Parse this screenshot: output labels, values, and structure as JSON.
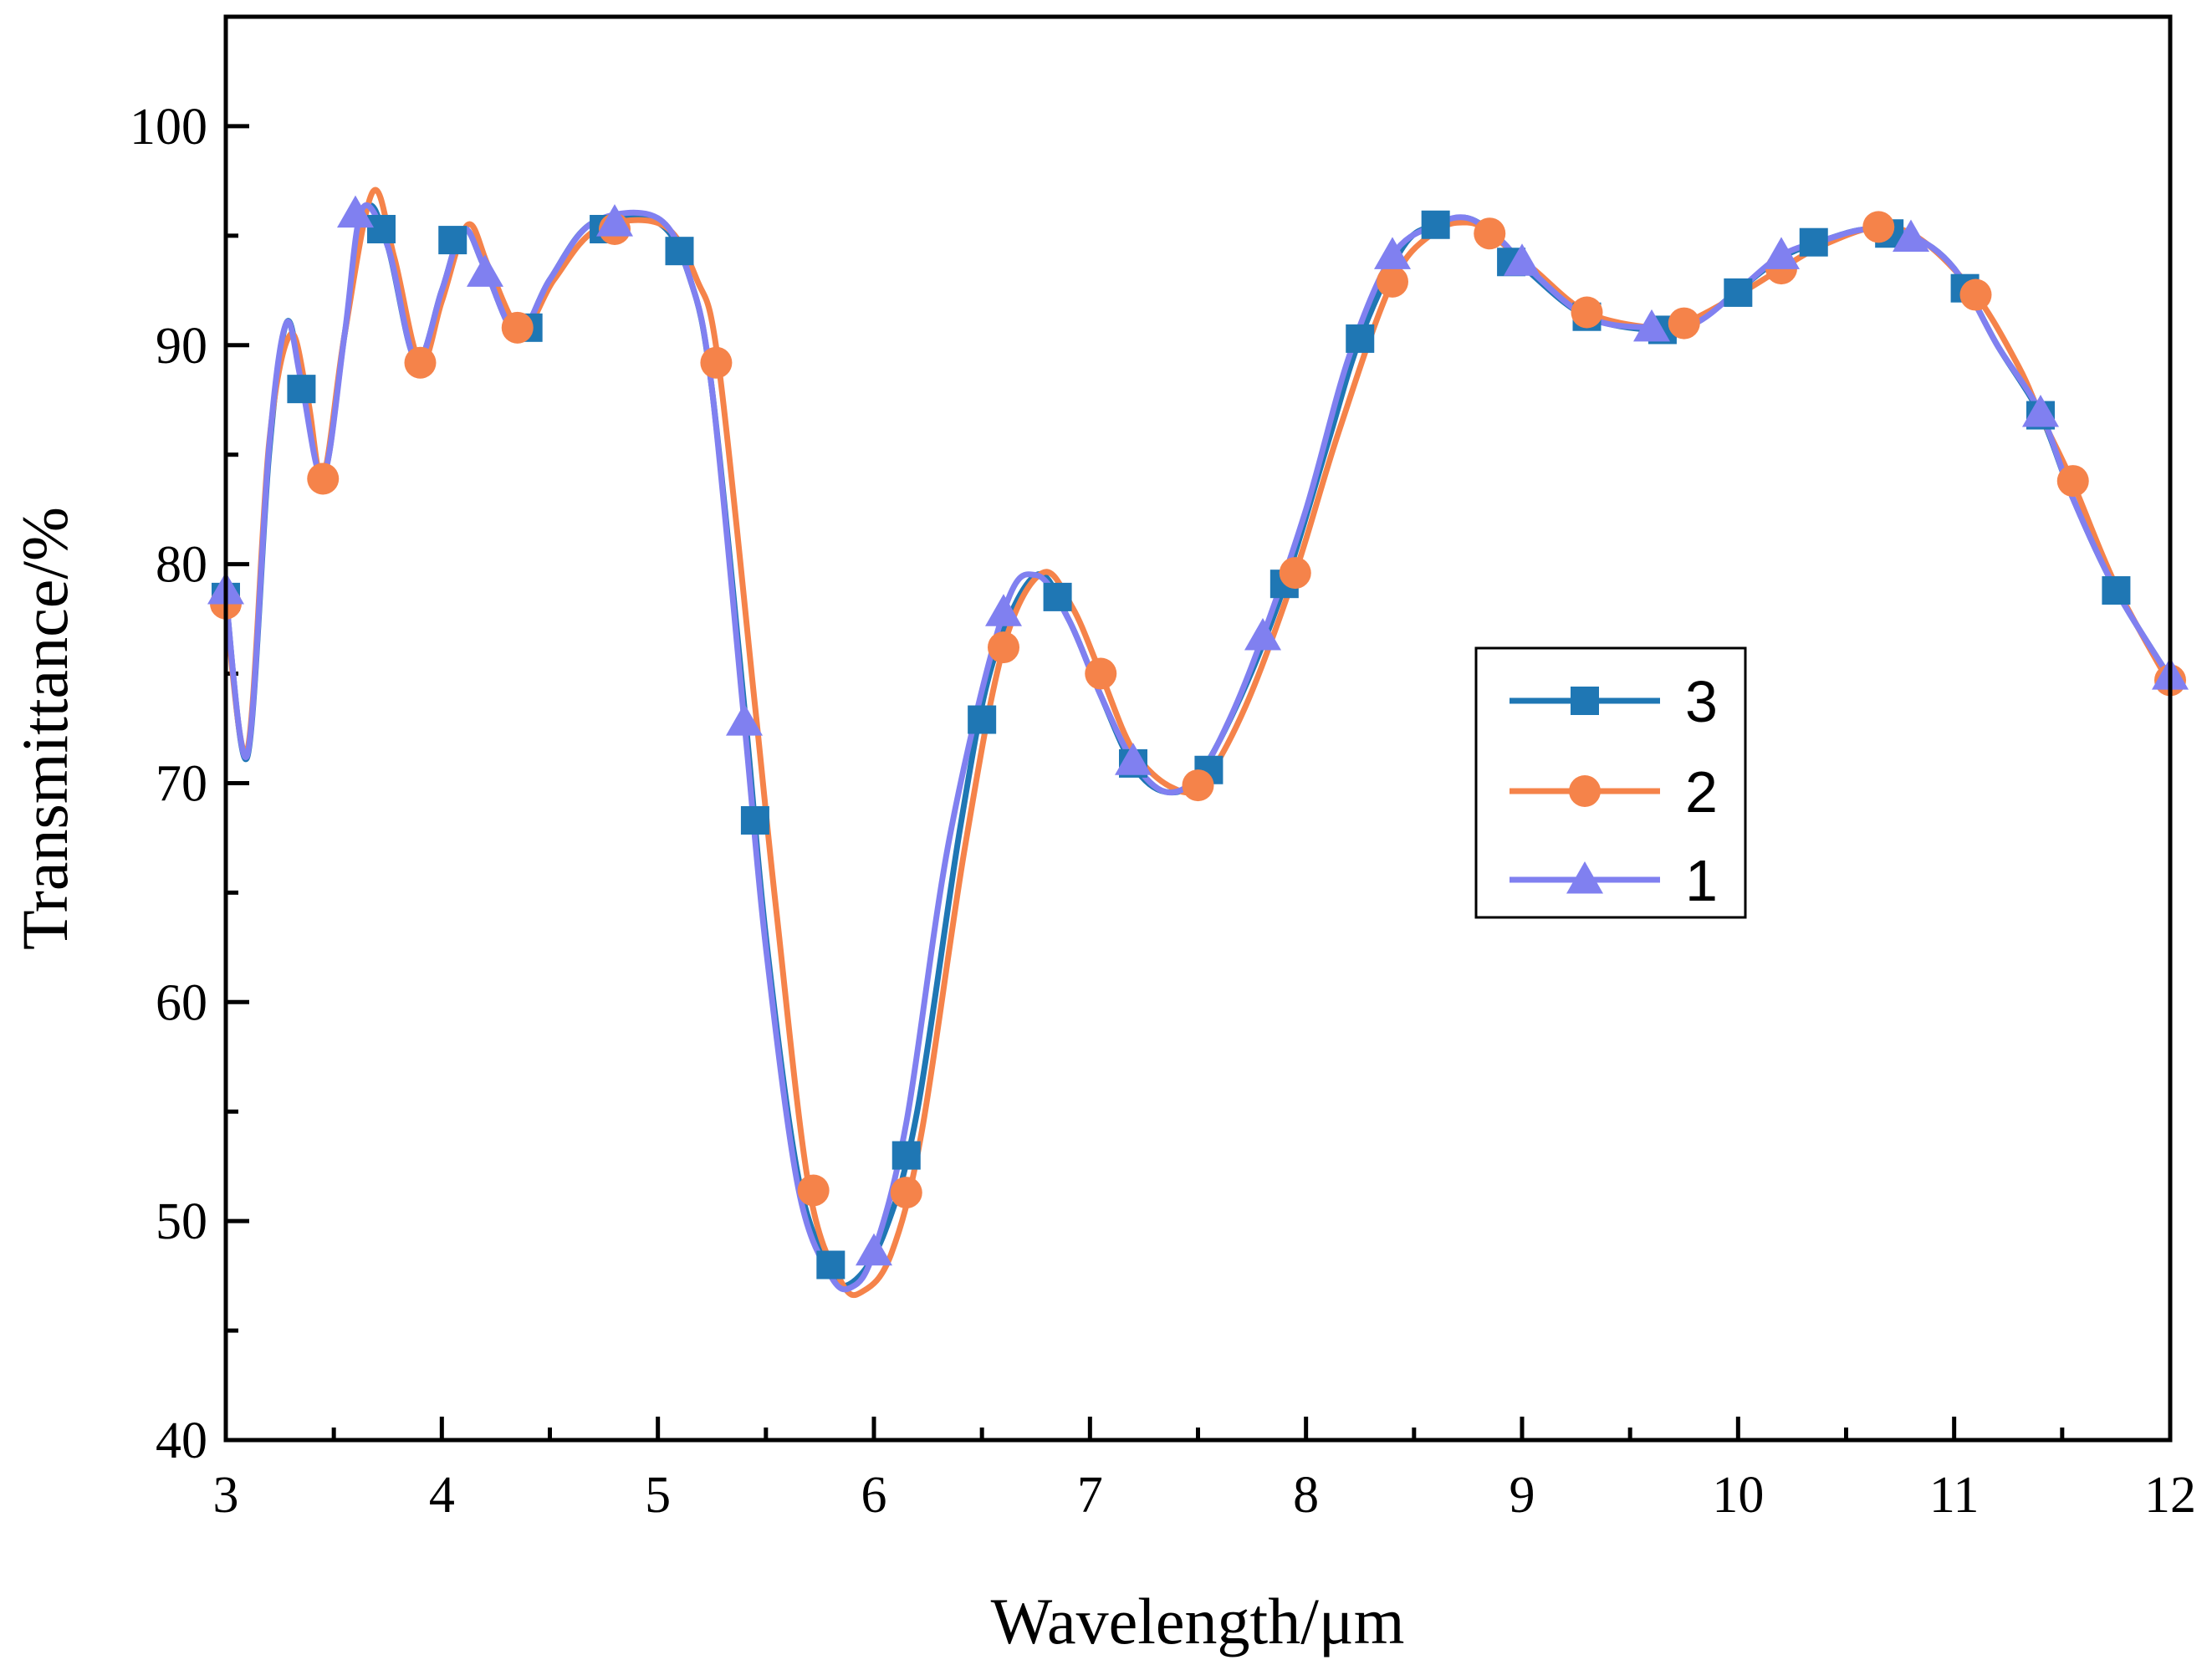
{
  "chart_data": {
    "type": "line",
    "title": "",
    "xlabel": "Wavelength/μm",
    "ylabel": "Transmittance/%",
    "xlim": [
      3,
      12
    ],
    "ylim": [
      40,
      105
    ],
    "x_ticks": [
      3,
      4,
      5,
      6,
      7,
      8,
      9,
      10,
      11,
      12
    ],
    "y_ticks": [
      40,
      50,
      60,
      70,
      80,
      90,
      100
    ],
    "x_tick_labels": [
      "3",
      "4",
      "5",
      "6",
      "7",
      "8",
      "9",
      "10",
      "11",
      "12"
    ],
    "y_tick_labels": [
      "40",
      "50",
      "60",
      "70",
      "80",
      "90",
      "100"
    ],
    "grid": false,
    "legend_position": "center-right",
    "series": [
      {
        "name": "3",
        "color": "#1f77b4",
        "marker": "square",
        "curve": [
          [
            3.0,
            78.5
          ],
          [
            3.1,
            71.2
          ],
          [
            3.2,
            85.0
          ],
          [
            3.28,
            91.0
          ],
          [
            3.35,
            88.5
          ],
          [
            3.45,
            84.0
          ],
          [
            3.55,
            90.5
          ],
          [
            3.65,
            96.2
          ],
          [
            3.75,
            94.5
          ],
          [
            3.88,
            89.3
          ],
          [
            4.0,
            92.5
          ],
          [
            4.1,
            95.3
          ],
          [
            4.2,
            93.5
          ],
          [
            4.35,
            90.5
          ],
          [
            4.5,
            93.0
          ],
          [
            4.7,
            95.6
          ],
          [
            5.0,
            95.6
          ],
          [
            5.15,
            93.0
          ],
          [
            5.25,
            88.0
          ],
          [
            5.4,
            73.5
          ],
          [
            5.5,
            63.0
          ],
          [
            5.65,
            52.0
          ],
          [
            5.8,
            47.8
          ],
          [
            5.9,
            47.2
          ],
          [
            6.05,
            49.5
          ],
          [
            6.2,
            55.0
          ],
          [
            6.4,
            68.0
          ],
          [
            6.55,
            75.5
          ],
          [
            6.75,
            79.5
          ],
          [
            6.9,
            77.5
          ],
          [
            7.05,
            74.0
          ],
          [
            7.2,
            70.8
          ],
          [
            7.35,
            69.6
          ],
          [
            7.5,
            70.3
          ],
          [
            7.7,
            74.0
          ],
          [
            7.9,
            79.0
          ],
          [
            8.1,
            85.5
          ],
          [
            8.25,
            90.3
          ],
          [
            8.45,
            94.5
          ],
          [
            8.6,
            95.5
          ],
          [
            8.75,
            95.8
          ],
          [
            8.9,
            94.8
          ],
          [
            9.05,
            93.2
          ],
          [
            9.3,
            91.3
          ],
          [
            9.6,
            90.7
          ],
          [
            9.8,
            91.0
          ],
          [
            10.0,
            92.5
          ],
          [
            10.2,
            94.0
          ],
          [
            10.4,
            94.8
          ],
          [
            10.6,
            95.3
          ],
          [
            10.8,
            95.0
          ],
          [
            11.0,
            93.5
          ],
          [
            11.2,
            90.0
          ],
          [
            11.4,
            86.8
          ],
          [
            11.55,
            83.0
          ],
          [
            11.75,
            78.8
          ],
          [
            12.0,
            74.8
          ]
        ],
        "markers": [
          [
            3.0,
            78.5
          ],
          [
            3.35,
            88.0
          ],
          [
            3.72,
            95.3
          ],
          [
            4.05,
            94.8
          ],
          [
            4.4,
            90.8
          ],
          [
            4.75,
            95.3
          ],
          [
            5.1,
            94.3
          ],
          [
            5.45,
            68.3
          ],
          [
            5.8,
            48.0
          ],
          [
            6.15,
            53.0
          ],
          [
            6.5,
            72.9
          ],
          [
            6.85,
            78.5
          ],
          [
            7.2,
            70.9
          ],
          [
            7.55,
            70.6
          ],
          [
            7.9,
            79.1
          ],
          [
            8.25,
            90.3
          ],
          [
            8.6,
            95.5
          ],
          [
            8.95,
            93.8
          ],
          [
            9.3,
            91.3
          ],
          [
            9.65,
            90.7
          ],
          [
            10.0,
            92.4
          ],
          [
            10.35,
            94.7
          ],
          [
            10.7,
            95.1
          ],
          [
            11.05,
            92.6
          ],
          [
            11.4,
            86.8
          ],
          [
            11.75,
            78.8
          ]
        ]
      },
      {
        "name": "2",
        "color": "#f5834a",
        "marker": "circle",
        "curve": [
          [
            3.0,
            78.0
          ],
          [
            3.1,
            71.5
          ],
          [
            3.2,
            85.5
          ],
          [
            3.3,
            90.5
          ],
          [
            3.38,
            87.5
          ],
          [
            3.45,
            84.0
          ],
          [
            3.55,
            90.5
          ],
          [
            3.68,
            97.0
          ],
          [
            3.78,
            94.0
          ],
          [
            3.9,
            89.2
          ],
          [
            4.0,
            92.0
          ],
          [
            4.12,
            95.5
          ],
          [
            4.22,
            93.5
          ],
          [
            4.37,
            90.7
          ],
          [
            4.52,
            93.0
          ],
          [
            4.72,
            95.3
          ],
          [
            5.02,
            95.5
          ],
          [
            5.18,
            93.0
          ],
          [
            5.28,
            89.2
          ],
          [
            5.45,
            73.5
          ],
          [
            5.55,
            64.0
          ],
          [
            5.7,
            51.5
          ],
          [
            5.85,
            47.2
          ],
          [
            5.95,
            46.8
          ],
          [
            6.08,
            48.5
          ],
          [
            6.22,
            54.0
          ],
          [
            6.42,
            67.0
          ],
          [
            6.6,
            76.2
          ],
          [
            6.78,
            79.6
          ],
          [
            6.92,
            78.0
          ],
          [
            7.05,
            75.0
          ],
          [
            7.2,
            71.5
          ],
          [
            7.38,
            69.8
          ],
          [
            7.52,
            70.0
          ],
          [
            7.72,
            73.5
          ],
          [
            7.95,
            79.6
          ],
          [
            8.15,
            86.0
          ],
          [
            8.4,
            92.9
          ],
          [
            8.6,
            95.2
          ],
          [
            8.75,
            95.6
          ],
          [
            8.85,
            95.1
          ],
          [
            9.05,
            93.5
          ],
          [
            9.3,
            91.5
          ],
          [
            9.6,
            90.8
          ],
          [
            9.75,
            91.0
          ],
          [
            10.0,
            92.3
          ],
          [
            10.2,
            93.5
          ],
          [
            10.4,
            94.6
          ],
          [
            10.65,
            95.4
          ],
          [
            10.85,
            94.8
          ],
          [
            11.1,
            92.3
          ],
          [
            11.3,
            89.0
          ],
          [
            11.4,
            86.8
          ],
          [
            11.55,
            83.7
          ],
          [
            11.75,
            79.0
          ],
          [
            12.0,
            74.5
          ]
        ],
        "markers": [
          [
            3.0,
            78.2
          ],
          [
            3.45,
            83.9
          ],
          [
            3.9,
            89.2
          ],
          [
            4.35,
            90.8
          ],
          [
            4.8,
            95.3
          ],
          [
            5.27,
            89.2
          ],
          [
            5.72,
            51.4
          ],
          [
            6.15,
            51.3
          ],
          [
            6.6,
            76.2
          ],
          [
            7.05,
            75.0
          ],
          [
            7.5,
            69.9
          ],
          [
            7.95,
            79.6
          ],
          [
            8.4,
            92.9
          ],
          [
            8.85,
            95.1
          ],
          [
            9.3,
            91.5
          ],
          [
            9.75,
            91.0
          ],
          [
            10.2,
            93.5
          ],
          [
            10.65,
            95.4
          ],
          [
            11.1,
            92.3
          ],
          [
            11.55,
            83.8
          ],
          [
            12.0,
            74.7
          ]
        ]
      },
      {
        "name": "1",
        "color": "#8080f0",
        "marker": "triangle",
        "curve": [
          [
            3.0,
            78.5
          ],
          [
            3.1,
            71.3
          ],
          [
            3.2,
            85.3
          ],
          [
            3.28,
            91.0
          ],
          [
            3.35,
            88.3
          ],
          [
            3.45,
            84.0
          ],
          [
            3.55,
            90.5
          ],
          [
            3.63,
            96.2
          ],
          [
            3.75,
            94.5
          ],
          [
            3.88,
            89.3
          ],
          [
            4.0,
            92.5
          ],
          [
            4.1,
            95.3
          ],
          [
            4.2,
            93.5
          ],
          [
            4.35,
            90.5
          ],
          [
            4.5,
            93.0
          ],
          [
            4.7,
            95.6
          ],
          [
            5.0,
            95.8
          ],
          [
            5.15,
            93.0
          ],
          [
            5.25,
            88.0
          ],
          [
            5.4,
            72.8
          ],
          [
            5.5,
            62.5
          ],
          [
            5.65,
            51.5
          ],
          [
            5.8,
            47.5
          ],
          [
            5.9,
            47.0
          ],
          [
            6.0,
            48.6
          ],
          [
            6.15,
            54.5
          ],
          [
            6.35,
            67.5
          ],
          [
            6.6,
            77.8
          ],
          [
            6.75,
            79.5
          ],
          [
            6.9,
            77.5
          ],
          [
            7.05,
            74.0
          ],
          [
            7.2,
            71.0
          ],
          [
            7.35,
            69.6
          ],
          [
            7.5,
            70.3
          ],
          [
            7.65,
            73.0
          ],
          [
            7.8,
            76.7
          ],
          [
            8.0,
            82.5
          ],
          [
            8.2,
            89.5
          ],
          [
            8.4,
            94.1
          ],
          [
            8.6,
            95.5
          ],
          [
            8.75,
            95.8
          ],
          [
            8.9,
            94.8
          ],
          [
            9.0,
            93.8
          ],
          [
            9.3,
            91.3
          ],
          [
            9.6,
            90.8
          ],
          [
            9.8,
            91.0
          ],
          [
            10.0,
            92.5
          ],
          [
            10.2,
            94.1
          ],
          [
            10.4,
            94.8
          ],
          [
            10.6,
            95.3
          ],
          [
            10.8,
            95.0
          ],
          [
            11.0,
            93.5
          ],
          [
            11.2,
            90.0
          ],
          [
            11.4,
            86.9
          ],
          [
            11.55,
            83.0
          ],
          [
            11.75,
            78.8
          ],
          [
            12.0,
            74.8
          ]
        ],
        "markers": [
          [
            3.0,
            78.8
          ],
          [
            3.6,
            96.0
          ],
          [
            4.2,
            93.3
          ],
          [
            4.8,
            95.6
          ],
          [
            5.4,
            72.8
          ],
          [
            6.0,
            48.6
          ],
          [
            6.6,
            77.8
          ],
          [
            7.2,
            71.0
          ],
          [
            7.8,
            76.7
          ],
          [
            8.4,
            94.1
          ],
          [
            9.0,
            93.8
          ],
          [
            9.6,
            90.8
          ],
          [
            10.2,
            94.1
          ],
          [
            10.8,
            94.9
          ],
          [
            11.4,
            86.9
          ],
          [
            12.0,
            74.9
          ]
        ]
      }
    ]
  }
}
